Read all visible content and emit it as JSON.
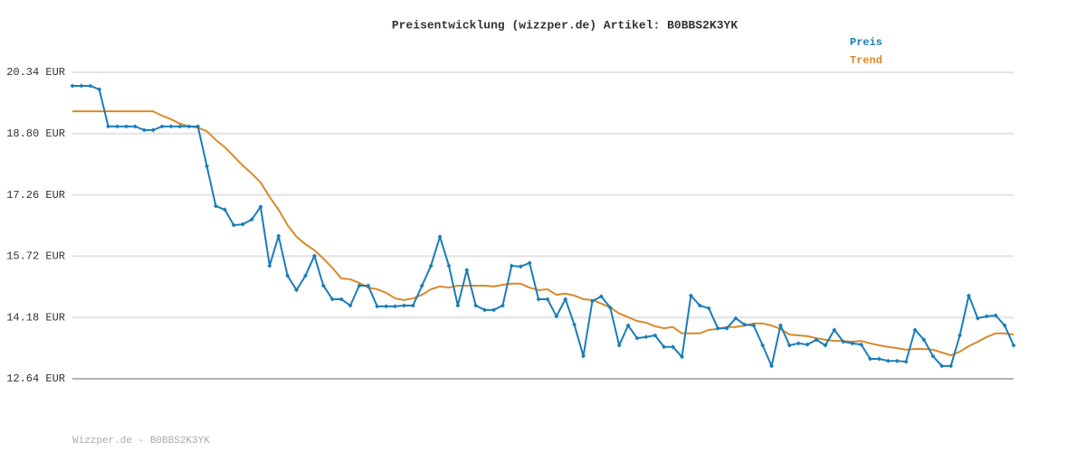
{
  "chart_data": {
    "type": "line",
    "title": "Preisentwicklung (wizzper.de) Artikel: B0BBS2K3YK",
    "footer": "Wizzper.de - B0BBS2K3YK",
    "legend": "top-right",
    "grid": true,
    "ylim": [
      12.64,
      20.34
    ],
    "yticks": [
      {
        "value": 12.64,
        "label": "12.64 EUR"
      },
      {
        "value": 14.18,
        "label": "14.18 EUR"
      },
      {
        "value": 15.72,
        "label": "15.72 EUR"
      },
      {
        "value": 17.26,
        "label": "17.26 EUR"
      },
      {
        "value": 18.8,
        "label": "18.80 EUR"
      },
      {
        "value": 20.34,
        "label": "20.34 EUR"
      }
    ],
    "categories": [
      null,
      null,
      null,
      null,
      null,
      null,
      null,
      null,
      null,
      null,
      null,
      null,
      null,
      null,
      null,
      null,
      null,
      null,
      null,
      null,
      null,
      null,
      null,
      null,
      null,
      null,
      null,
      null,
      null,
      null,
      null,
      null,
      null,
      null,
      null,
      null,
      null,
      null,
      null,
      null,
      null,
      null,
      null,
      null,
      null,
      null,
      null,
      null,
      null,
      null,
      null,
      null,
      null,
      null,
      null,
      null,
      null,
      null,
      null,
      null,
      null,
      null,
      null,
      null,
      null,
      null,
      null,
      null,
      null,
      null,
      null,
      null,
      null,
      null,
      null,
      null,
      null,
      null,
      null,
      null,
      null,
      null,
      null,
      null,
      null,
      null,
      null,
      null,
      null,
      null,
      null,
      null,
      null,
      null,
      null,
      null,
      null,
      null,
      null,
      null,
      null,
      null,
      null,
      null,
      null,
      null
    ],
    "series": [
      {
        "name": "Preis",
        "color": "#1a7db8",
        "markers": true,
        "values": [
          20.0,
          20.0,
          20.0,
          19.91,
          18.98,
          18.98,
          18.98,
          18.98,
          18.89,
          18.89,
          18.98,
          18.98,
          18.98,
          18.98,
          18.98,
          17.98,
          16.98,
          16.89,
          16.5,
          16.52,
          16.64,
          16.96,
          15.48,
          16.23,
          15.23,
          14.87,
          15.23,
          15.73,
          14.98,
          14.64,
          14.64,
          14.48,
          14.98,
          14.98,
          14.46,
          14.46,
          14.46,
          14.48,
          14.48,
          14.98,
          15.48,
          16.21,
          15.48,
          14.48,
          15.37,
          14.48,
          14.37,
          14.37,
          14.48,
          15.48,
          15.46,
          15.55,
          14.64,
          14.64,
          14.21,
          14.64,
          14.0,
          13.21,
          14.59,
          14.71,
          14.43,
          13.48,
          13.98,
          13.66,
          13.69,
          13.73,
          13.44,
          13.44,
          13.19,
          14.73,
          14.48,
          14.41,
          13.91,
          13.91,
          14.16,
          14.0,
          13.98,
          13.48,
          12.96,
          13.98,
          13.48,
          13.53,
          13.5,
          13.62,
          13.48,
          13.87,
          13.57,
          13.53,
          13.5,
          13.14,
          13.14,
          13.09,
          13.09,
          13.07,
          13.87,
          13.62,
          13.21,
          12.96,
          12.96,
          13.73,
          14.73,
          14.16,
          14.21,
          14.23,
          13.98,
          13.48
        ]
      },
      {
        "name": "Trend",
        "color": "#d9892b",
        "markers": false,
        "values": [
          19.36,
          19.36,
          19.36,
          19.36,
          19.36,
          19.36,
          19.36,
          19.36,
          19.36,
          19.36,
          19.25,
          19.16,
          19.05,
          18.98,
          18.95,
          18.86,
          18.64,
          18.46,
          18.23,
          18.0,
          17.8,
          17.57,
          17.21,
          16.89,
          16.5,
          16.21,
          16.02,
          15.87,
          15.66,
          15.43,
          15.16,
          15.14,
          15.05,
          14.93,
          14.89,
          14.8,
          14.66,
          14.62,
          14.66,
          14.75,
          14.89,
          14.96,
          14.93,
          14.98,
          14.98,
          14.98,
          14.98,
          14.96,
          15.0,
          15.03,
          15.03,
          14.93,
          14.87,
          14.89,
          14.75,
          14.78,
          14.73,
          14.64,
          14.62,
          14.53,
          14.43,
          14.28,
          14.19,
          14.09,
          14.05,
          13.96,
          13.91,
          13.94,
          13.78,
          13.78,
          13.78,
          13.87,
          13.89,
          13.94,
          13.94,
          13.98,
          14.03,
          14.03,
          13.98,
          13.89,
          13.75,
          13.73,
          13.71,
          13.66,
          13.62,
          13.59,
          13.59,
          13.57,
          13.59,
          13.53,
          13.48,
          13.44,
          13.41,
          13.37,
          13.39,
          13.39,
          13.37,
          13.3,
          13.23,
          13.32,
          13.46,
          13.57,
          13.69,
          13.78,
          13.78,
          13.75
        ]
      }
    ]
  }
}
